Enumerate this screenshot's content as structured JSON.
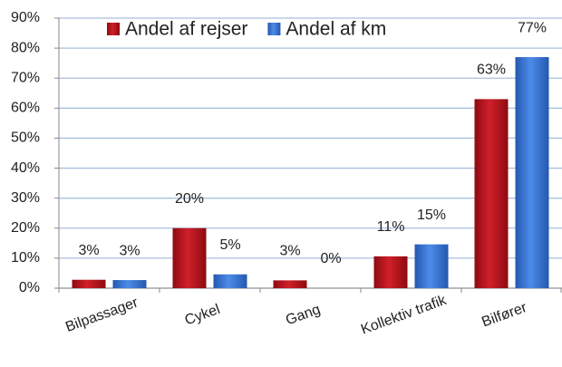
{
  "chart_data": {
    "type": "bar",
    "categories": [
      "Bilpassager",
      "Cykel",
      "Gang",
      "Kollektiv trafik",
      "Bilfører"
    ],
    "series": [
      {
        "name": "Andel af rejser",
        "color": "#c0141c",
        "values": [
          2.8,
          20,
          2.6,
          10.6,
          63
        ],
        "value_labels": [
          "3%",
          "20%",
          "3%",
          "11%",
          "63%"
        ]
      },
      {
        "name": "Andel af km",
        "color": "#3a78d8",
        "values": [
          2.7,
          4.6,
          0,
          14.6,
          77
        ],
        "value_labels": [
          "3%",
          "5%",
          "0%",
          "15%",
          "77%"
        ]
      }
    ],
    "ylim": [
      0,
      90
    ],
    "yticks": [
      {
        "value": 0,
        "label": "0%"
      },
      {
        "value": 10,
        "label": "10%"
      },
      {
        "value": 20,
        "label": "20%"
      },
      {
        "value": 30,
        "label": "30%"
      },
      {
        "value": 40,
        "label": "40%"
      },
      {
        "value": 50,
        "label": "50%"
      },
      {
        "value": 60,
        "label": "60%"
      },
      {
        "value": 70,
        "label": "70%"
      },
      {
        "value": 80,
        "label": "80%"
      },
      {
        "value": 90,
        "label": "90%"
      }
    ],
    "grid": true,
    "legend": "top"
  }
}
